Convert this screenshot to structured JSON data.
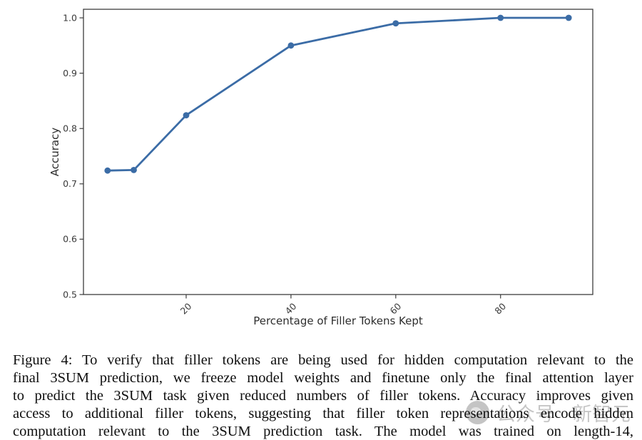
{
  "chart_data": {
    "type": "line",
    "title": "",
    "xlabel": "Percentage of Filler Tokens Kept",
    "ylabel": "Accuracy",
    "x": [
      5,
      10,
      20,
      40,
      60,
      80,
      93
    ],
    "y": [
      0.724,
      0.725,
      0.824,
      0.95,
      0.99,
      1.0,
      1.0
    ],
    "xticks": [
      20,
      40,
      60,
      80
    ],
    "yticks": [
      0.5,
      0.6,
      0.7,
      0.8,
      0.9,
      1.0
    ],
    "xlim": [
      0.4,
      97.6
    ],
    "ylim": [
      0.5,
      1.0155
    ],
    "xtick_rotation": 45,
    "grid": false,
    "legend": null,
    "line_color": "#3b6ca6",
    "marker": "circle",
    "marker_size": 4.4,
    "line_width": 2.8,
    "axis_color": "#3d3d3d",
    "tick_label_color": "#3a3a3a",
    "label_color": "#2e2e2e"
  },
  "caption": {
    "lines": [
      "Figure 4: To verify that filler tokens are being used for hidden computation relevant to the",
      "final 3SUM prediction, we freeze model weights and finetune only the final attention layer",
      "to predict the 3SUM task given reduced numbers of filler tokens. Accuracy improves given",
      "access to additional filler tokens, suggesting that filler token representations encode hidden",
      "computation relevant to the 3SUM prediction task. The model was trained on length-14,"
    ],
    "text": "Figure 4: To verify that filler tokens are being used for hidden computation relevant to the final 3SUM prediction, we freeze model weights and finetune only the final attention layer to predict the 3SUM task given reduced numbers of filler tokens. Accuracy improves given access to additional filler tokens, suggesting that filler token representations encode hidden computation relevant to the 3SUM prediction task. The model was trained on length-14,"
  },
  "watermark": {
    "icon": "circle-logo",
    "text1": "公众号",
    "text2": "新智元",
    "color": "#8f8f8f"
  }
}
